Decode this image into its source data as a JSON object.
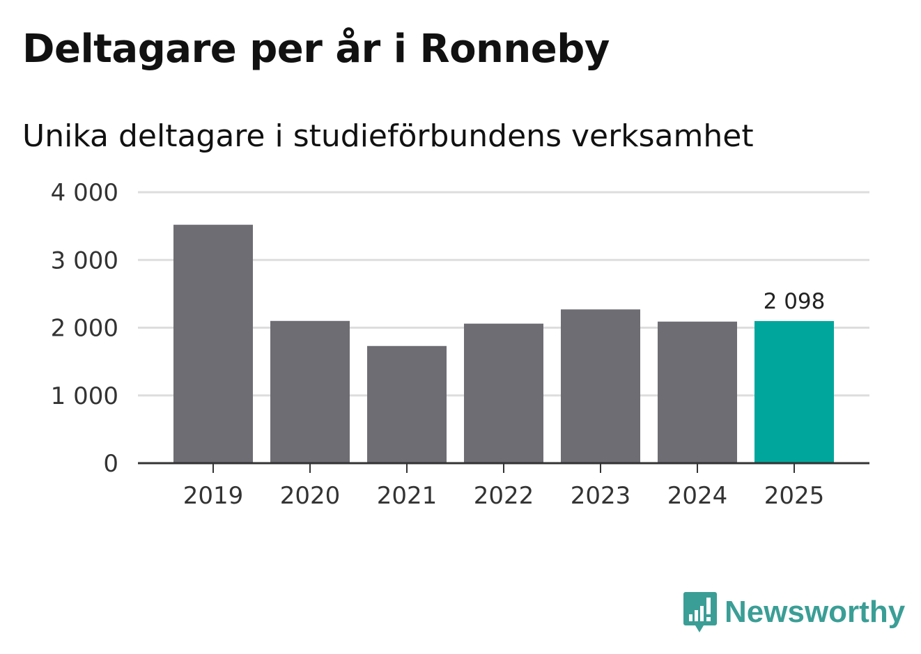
{
  "title": "Deltagare per år i Ronneby",
  "subtitle": "Unika deltagare i studieförbundens verksamhet",
  "colors": {
    "bar": "#6e6d73",
    "highlight": "#00a69c",
    "grid": "#dddddd",
    "axis": "#333333",
    "brand": "#3a9e96"
  },
  "brand": {
    "name": "Newsworthy",
    "icon": "newsworthy-logo-icon"
  },
  "chart_data": {
    "type": "bar",
    "title": "Deltagare per år i Ronneby",
    "subtitle": "Unika deltagare i studieförbundens verksamhet",
    "xlabel": "",
    "ylabel": "",
    "categories": [
      "2019",
      "2020",
      "2021",
      "2022",
      "2023",
      "2024",
      "2025"
    ],
    "values": [
      3520,
      2100,
      1730,
      2060,
      2270,
      2090,
      2098
    ],
    "highlight_index": 6,
    "data_labels": [
      {
        "index": 6,
        "text": "2 098"
      }
    ],
    "ylim": [
      0,
      4000
    ],
    "yticks": [
      0,
      1000,
      2000,
      3000,
      4000
    ],
    "ytick_labels": [
      "0",
      "1 000",
      "2 000",
      "3 000",
      "4 000"
    ],
    "grid": true,
    "legend": "none"
  }
}
